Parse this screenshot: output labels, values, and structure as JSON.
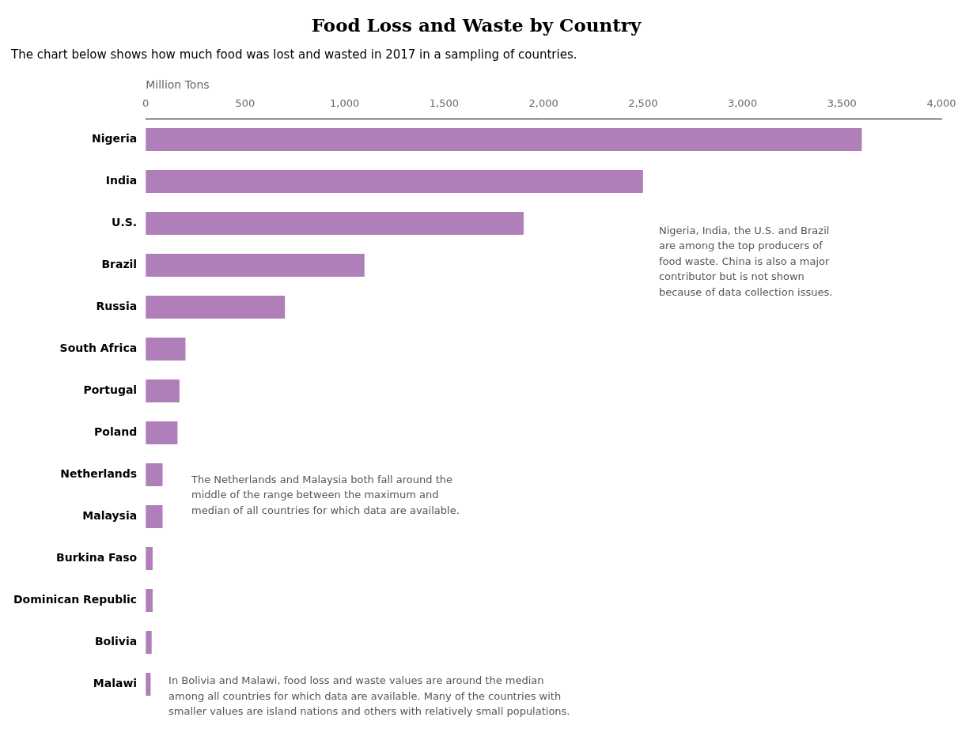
{
  "chart_data": {
    "type": "bar",
    "orientation": "horizontal",
    "title": "Food Loss and Waste by Country",
    "subtitle": "The chart below shows how much food was lost and wasted in 2017 in a sampling of countries.",
    "xlabel": "Million Tons",
    "categories": [
      "Nigeria",
      "India",
      "U.S.",
      "Brazil",
      "Russia",
      "South Africa",
      "Portugal",
      "Poland",
      "Netherlands",
      "Malaysia",
      "Burkina Faso",
      "Dominican Republic",
      "Bolivia",
      "Malawi"
    ],
    "values": [
      3600,
      2500,
      1900,
      1100,
      700,
      200,
      170,
      160,
      85,
      85,
      35,
      35,
      30,
      25
    ],
    "color": "#b07fba",
    "xlim": [
      0,
      4000
    ],
    "xticks": [
      0,
      500,
      {
        "value": 1000,
        "label": "1,000"
      },
      {
        "value": 1500,
        "label": "1,500"
      },
      {
        "value": 2000,
        "label": "2,000"
      },
      {
        "value": 2500,
        "label": "2,500"
      },
      {
        "value": 3000,
        "label": "3,000"
      },
      {
        "value": 3500,
        "label": "3,500"
      },
      {
        "value": 4000,
        "label": "4,000"
      }
    ],
    "grid": false,
    "annotations": [
      "Nigeria, India, the U.S. and Brazil\nare among the top producers of\nfood waste. China is also a major\ncontributor but is not shown\nbecause of data collection issues.",
      "The Netherlands and Malaysia both fall around the\nmiddle of the range between the maximum and\nmedian of all countries for which data are available.",
      "In Bolivia and Malawi, food loss and waste values are around the median\namong all countries for which data are available. Many of the countries with\nsmaller values are island nations and others with relatively small populations."
    ]
  }
}
